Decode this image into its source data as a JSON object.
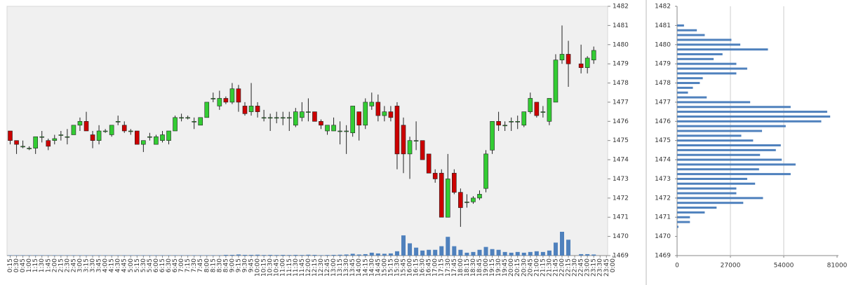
{
  "chart_data": [
    {
      "type": "candlestick",
      "x": [
        "0:15",
        "0:30",
        "0:45",
        "1:00",
        "1:15",
        "1:30",
        "1:45",
        "2:00",
        "2:15",
        "2:30",
        "2:45",
        "3:00",
        "3:15",
        "3:30",
        "3:45",
        "4:00",
        "4:15",
        "4:30",
        "4:45",
        "5:00",
        "5:15",
        "5:30",
        "5:45",
        "6:00",
        "6:15",
        "6:30",
        "6:45",
        "7:00",
        "7:15",
        "7:30",
        "7:45",
        "8:00",
        "8:15",
        "8:30",
        "8:45",
        "9:00",
        "9:15",
        "9:30",
        "9:45",
        "10:00",
        "10:15",
        "10:30",
        "10:45",
        "11:00",
        "11:15",
        "11:30",
        "11:45",
        "12:00",
        "12:15",
        "12:30",
        "12:45",
        "13:00",
        "13:15",
        "13:30",
        "13:45",
        "14:00",
        "14:15",
        "14:30",
        "14:45",
        "15:00",
        "15:15",
        "15:30",
        "15:45",
        "16:00",
        "16:15",
        "16:30",
        "16:45",
        "17:00",
        "17:15",
        "17:30",
        "17:45",
        "18:00",
        "18:15",
        "18:30",
        "18:45",
        "19:00",
        "19:15",
        "19:30",
        "19:45",
        "20:00",
        "20:15",
        "20:30",
        "20:45",
        "21:00",
        "21:15",
        "21:30",
        "21:45",
        "22:00",
        "22:15",
        "22:30",
        "22:45",
        "23:00",
        "23:15",
        "23:30",
        "23:45",
        "0:00"
      ],
      "open": [
        1475.5,
        1475.0,
        1474.7,
        1474.6,
        1474.6,
        1475.2,
        1475.0,
        1475.0,
        1475.3,
        1475.2,
        1475.3,
        1475.8,
        1476.0,
        1475.3,
        1475.0,
        1475.5,
        1475.3,
        1476.0,
        1475.8,
        1475.5,
        1475.5,
        1474.8,
        1475.2,
        1474.8,
        1475.0,
        1475.0,
        1475.5,
        1476.2,
        1476.2,
        1476.0,
        1475.8,
        1476.2,
        1477.2,
        1476.8,
        1477.2,
        1477.0,
        1477.7,
        1476.8,
        1476.5,
        1476.8,
        1476.2,
        1476.2,
        1476.2,
        1476.2,
        1476.2,
        1475.8,
        1476.2,
        1476.5,
        1476.5,
        1476.0,
        1475.5,
        1475.5,
        1475.5,
        1475.5,
        1475.4,
        1476.5,
        1475.8,
        1476.8,
        1477.0,
        1476.3,
        1476.5,
        1476.8,
        1475.8,
        1474.3,
        1475.0,
        1475.0,
        1474.3,
        1473.3,
        1473.3,
        1471.0,
        1473.3,
        1472.3,
        1471.8,
        1471.8,
        1472.0,
        1472.5,
        1474.5,
        1476.0,
        1475.8,
        1476.0,
        1476.0,
        1475.8,
        1476.5,
        1477.0,
        1476.5,
        1476.0,
        1477.0,
        1479.2,
        1479.5,
        null,
        1479.0,
        1478.8,
        1479.2,
        null,
        null,
        null
      ],
      "high": [
        1475.5,
        1475.0,
        1475.0,
        1474.7,
        1475.2,
        1475.5,
        1475.1,
        1475.3,
        1475.5,
        1475.6,
        1475.8,
        1476.2,
        1476.5,
        1475.5,
        1475.8,
        1475.6,
        1475.8,
        1476.3,
        1476.0,
        1475.6,
        1475.5,
        1475.0,
        1475.4,
        1475.3,
        1475.5,
        1475.5,
        1476.3,
        1476.4,
        1476.3,
        1476.2,
        1476.2,
        1477.0,
        1477.5,
        1477.6,
        1477.3,
        1478.0,
        1477.9,
        1477.0,
        1478.0,
        1477.0,
        1476.6,
        1476.4,
        1476.5,
        1476.5,
        1476.5,
        1476.7,
        1477.0,
        1477.2,
        1476.5,
        1476.1,
        1475.8,
        1476.2,
        1476.0,
        1475.8,
        1476.8,
        1476.5,
        1477.2,
        1477.5,
        1477.4,
        1476.8,
        1476.8,
        1477.0,
        1476.2,
        1475.2,
        1476.0,
        1475.0,
        1474.3,
        1473.5,
        1473.5,
        1474.3,
        1473.5,
        1472.5,
        1472.2,
        1472.1,
        1472.4,
        1474.5,
        1476.0,
        1476.5,
        1476.0,
        1476.2,
        1476.3,
        1476.5,
        1477.5,
        1477.0,
        1476.8,
        1477.2,
        1479.5,
        1481.0,
        1480.2,
        null,
        1480.0,
        1479.4,
        1479.9,
        null,
        null,
        null
      ],
      "low": [
        1474.8,
        1474.3,
        1474.6,
        1474.5,
        1474.3,
        1474.9,
        1474.5,
        1474.8,
        1475.0,
        1474.8,
        1475.3,
        1475.5,
        1475.5,
        1474.6,
        1474.8,
        1475.4,
        1475.2,
        1475.8,
        1475.4,
        1475.3,
        1474.8,
        1474.4,
        1475.0,
        1474.8,
        1474.9,
        1474.8,
        1475.5,
        1476.0,
        1476.1,
        1475.6,
        1475.8,
        1476.2,
        1477.0,
        1476.6,
        1476.9,
        1476.9,
        1476.5,
        1476.3,
        1476.3,
        1476.2,
        1476.0,
        1475.5,
        1475.9,
        1475.8,
        1475.5,
        1475.7,
        1476.0,
        1476.0,
        1476.0,
        1475.6,
        1475.3,
        1475.5,
        1474.8,
        1474.3,
        1475.2,
        1475.0,
        1475.6,
        1476.6,
        1476.0,
        1476.0,
        1476.0,
        1473.5,
        1473.3,
        1473.0,
        1474.5,
        1474.0,
        1473.3,
        1472.8,
        1471.0,
        1471.0,
        1472.2,
        1470.5,
        1471.5,
        1471.7,
        1471.9,
        1472.3,
        1474.3,
        1475.5,
        1475.5,
        1475.5,
        1475.6,
        1475.7,
        1476.4,
        1476.2,
        1476.2,
        1475.8,
        1477.0,
        1479.0,
        1477.8,
        null,
        1478.5,
        1478.5,
        1479.0,
        null,
        null,
        null
      ],
      "close": [
        1475.0,
        1474.8,
        1474.7,
        1474.6,
        1475.2,
        1475.2,
        1474.7,
        1475.1,
        1475.3,
        1475.2,
        1475.8,
        1476.0,
        1475.5,
        1475.0,
        1475.5,
        1475.5,
        1475.8,
        1476.0,
        1475.5,
        1475.5,
        1474.8,
        1475.0,
        1475.2,
        1475.2,
        1475.3,
        1475.5,
        1476.2,
        1476.2,
        1476.2,
        1476.0,
        1476.2,
        1477.0,
        1477.2,
        1477.2,
        1477.0,
        1477.7,
        1477.0,
        1476.4,
        1476.8,
        1476.5,
        1476.2,
        1476.2,
        1476.2,
        1476.2,
        1476.2,
        1476.5,
        1476.5,
        1476.5,
        1476.0,
        1475.8,
        1475.8,
        1475.8,
        1475.5,
        1475.5,
        1476.8,
        1475.8,
        1477.0,
        1477.0,
        1476.3,
        1476.5,
        1476.2,
        1474.3,
        1474.3,
        1475.0,
        1475.0,
        1474.0,
        1473.3,
        1473.0,
        1471.0,
        1473.0,
        1472.3,
        1471.5,
        1471.8,
        1472.0,
        1472.2,
        1474.3,
        1476.0,
        1475.8,
        1475.8,
        1476.0,
        1476.0,
        1476.5,
        1477.2,
        1476.3,
        1476.5,
        1477.2,
        1479.2,
        1479.5,
        1479.0,
        null,
        1478.8,
        1479.3,
        1479.7,
        null,
        null,
        null
      ],
      "volume": [
        50,
        50,
        50,
        50,
        50,
        50,
        50,
        50,
        50,
        50,
        50,
        50,
        50,
        50,
        50,
        50,
        50,
        50,
        50,
        50,
        50,
        50,
        50,
        50,
        50,
        50,
        50,
        50,
        50,
        50,
        50,
        50,
        50,
        50,
        100,
        100,
        150,
        100,
        100,
        120,
        80,
        100,
        80,
        100,
        80,
        100,
        80,
        120,
        100,
        60,
        80,
        100,
        120,
        150,
        250,
        150,
        200,
        400,
        300,
        250,
        300,
        600,
        2800,
        1700,
        1100,
        700,
        800,
        800,
        1300,
        2600,
        1300,
        800,
        400,
        500,
        800,
        1200,
        900,
        800,
        500,
        400,
        500,
        400,
        500,
        600,
        500,
        700,
        1800,
        3300,
        2200,
        null,
        200,
        200,
        150,
        null,
        null,
        null
      ],
      "up_color": "#33cc33",
      "down_color": "#cc0000",
      "volume_color": "#4f81bd",
      "ylim": [
        1469,
        1482
      ],
      "yticks": [
        1469,
        1470,
        1471,
        1472,
        1473,
        1474,
        1475,
        1476,
        1477,
        1478,
        1479,
        1480,
        1481,
        1482
      ]
    },
    {
      "type": "hbar",
      "y": [
        1481,
        1480.75,
        1480.5,
        1480.25,
        1480,
        1479.75,
        1479.5,
        1479.25,
        1479,
        1478.75,
        1478.5,
        1478.25,
        1478,
        1477.75,
        1477.5,
        1477.25,
        1477,
        1476.75,
        1476.5,
        1476.25,
        1476,
        1475.75,
        1475.5,
        1475.25,
        1475,
        1474.75,
        1474.5,
        1474.25,
        1474,
        1473.75,
        1473.5,
        1473.25,
        1473,
        1472.75,
        1472.5,
        1472.25,
        1472,
        1471.75,
        1471.5,
        1471.25,
        1471,
        1470.75,
        1470.5
      ],
      "values": [
        3500,
        10000,
        14000,
        27500,
        32000,
        46000,
        23000,
        18500,
        30000,
        35500,
        30000,
        13000,
        11500,
        8000,
        5500,
        15000,
        37000,
        57500,
        76000,
        77500,
        73000,
        55000,
        43000,
        32500,
        38500,
        52500,
        50000,
        42000,
        53000,
        60000,
        41500,
        57500,
        35500,
        39500,
        30000,
        30000,
        43500,
        33500,
        20000,
        14000,
        6500,
        6500,
        700
      ],
      "color": "#4f81bd",
      "xlim": [
        0,
        81000
      ],
      "xticks": [
        0,
        27000,
        54000,
        81000
      ],
      "ylim": [
        1469,
        1482
      ],
      "yticks": [
        1469,
        1470,
        1471,
        1472,
        1473,
        1474,
        1475,
        1476,
        1477,
        1478,
        1479,
        1480,
        1481,
        1482
      ],
      "grid": true
    }
  ]
}
